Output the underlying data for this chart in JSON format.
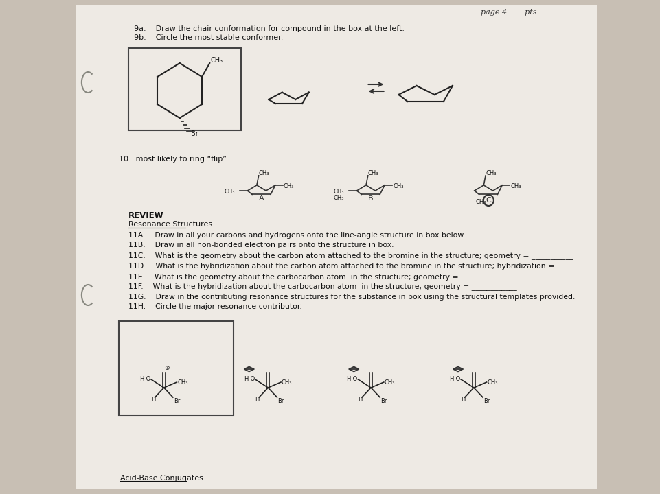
{
  "bg_color": "#c8bfb4",
  "page_bg": "#eeeae4",
  "title_text": "page 4 ____pts",
  "q9a": "9a.    Draw the chair conformation for compound in the box at the left.",
  "q9b": "9b.    Circle the most stable conformer.",
  "q10": "10.  most likely to ring “flip”",
  "review": "REVIEW",
  "resonance": "Resonance Structures",
  "q11a": "11A.    Draw in all your carbons and hydrogens onto the line-angle structure in box below.",
  "q11b": "11B.    Draw in all non-bonded electron pairs onto the structure in box.",
  "q11c": "11C.    What is the geometry about the carbon atom attached to the bromine in the structure; geometry = ___________",
  "q11d": "11D.    What is the hybridization about the carbon atom attached to the bromine in the structure; hybridization = _____",
  "q11e": "11E.    What is the geometry about the carbocarbon atom  in the structure; geometry = ____________",
  "q11f": "11F.    What is the hybridization about the carbocarbon atom  in the structure; geometry = ____________",
  "q11g": "11G.    Draw in the contributing resonance structures for the substance in box using the structural templates provided.",
  "q11h": "11H.    Circle the major resonance contributor.",
  "acid_base": "Acid-Base Conjugates"
}
